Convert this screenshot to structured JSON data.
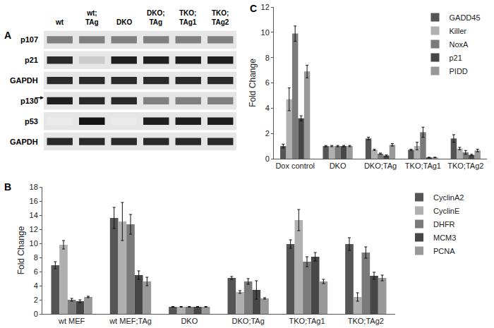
{
  "chart_data": [
    {
      "type": "bar",
      "panel_label": "B",
      "y_label": "Fold Change",
      "categories": [
        "wt MEF",
        "wt MEF;TAg",
        "DKO",
        "DKO;TAg",
        "TKO;TAg1",
        "TKO;TAg2"
      ],
      "ylim": [
        0,
        18
      ],
      "yticks": [
        0,
        2,
        4,
        6,
        8,
        10,
        12,
        14,
        16,
        18
      ],
      "grid": false,
      "legend": "right",
      "series": [
        {
          "name": "CyclinA2",
          "color": "#555555",
          "values": [
            6.9,
            13.6,
            1.0,
            5.1,
            9.9,
            9.9
          ],
          "errors": [
            0.5,
            1.5,
            0.05,
            0.2,
            0.6,
            0.9
          ]
        },
        {
          "name": "CyclinE",
          "color": "#b0b0b0",
          "values": [
            9.8,
            13.1,
            1.0,
            3.1,
            13.3,
            2.4
          ],
          "errors": [
            0.6,
            2.7,
            0.05,
            0.2,
            1.5,
            0.6
          ]
        },
        {
          "name": "DHFR",
          "color": "#7a7a7a",
          "values": [
            2.0,
            12.7,
            1.0,
            4.6,
            7.4,
            8.7
          ],
          "errors": [
            0.2,
            1.4,
            0.05,
            0.4,
            0.7,
            0.8
          ]
        },
        {
          "name": "MCM3",
          "color": "#474747",
          "values": [
            1.8,
            5.5,
            1.0,
            3.4,
            8.1,
            5.4
          ],
          "errors": [
            0.2,
            0.6,
            0.05,
            1.3,
            0.6,
            0.5
          ]
        },
        {
          "name": "PCNA",
          "color": "#999999",
          "values": [
            2.4,
            4.6,
            1.0,
            2.2,
            4.6,
            5.1
          ],
          "errors": [
            0.1,
            0.6,
            0.05,
            0.1,
            0.3,
            0.4
          ]
        }
      ]
    },
    {
      "type": "bar",
      "panel_label": "C",
      "y_label": "Fold Change",
      "categories": [
        "Dox control",
        "DKO",
        "DKO;TAg",
        "TKO;TAg1",
        "TKO;TAg2"
      ],
      "ylim": [
        0,
        12
      ],
      "yticks": [
        0,
        2,
        4,
        6,
        8,
        10,
        12
      ],
      "grid": false,
      "legend": "upper right",
      "series": [
        {
          "name": "GADD45",
          "color": "#555555",
          "values": [
            1.0,
            1.0,
            1.6,
            0.7,
            1.6
          ],
          "errors": [
            0.15,
            0.05,
            0.1,
            0.05,
            0.3
          ]
        },
        {
          "name": "Killer",
          "color": "#b0b0b0",
          "values": [
            4.7,
            1.0,
            0.7,
            1.0,
            0.8
          ],
          "errors": [
            0.9,
            0.05,
            0.05,
            0.3,
            0.1
          ]
        },
        {
          "name": "NoxA",
          "color": "#7a7a7a",
          "values": [
            9.9,
            1.0,
            0.4,
            2.1,
            0.5
          ],
          "errors": [
            0.6,
            0.05,
            0.05,
            0.4,
            0.15
          ]
        },
        {
          "name": "p21",
          "color": "#474747",
          "values": [
            3.2,
            1.0,
            0.25,
            0.1,
            0.3
          ],
          "errors": [
            0.2,
            0.05,
            0.05,
            0.02,
            0.05
          ]
        },
        {
          "name": "PIDD",
          "color": "#999999",
          "values": [
            6.9,
            1.0,
            1.1,
            0.1,
            0.65
          ],
          "errors": [
            0.5,
            0.05,
            0.1,
            0.02,
            0.1
          ]
        }
      ]
    }
  ],
  "blot": {
    "panel_label": "A",
    "lanes": [
      "wt",
      "wt;TAg",
      "DKO",
      "DKO;TAg",
      "TKO;TAg1",
      "TKO;TAg2"
    ],
    "rows": [
      {
        "label": "p107",
        "bands": [
          0.5,
          0.5,
          0.5,
          0.5,
          0.5,
          0.5
        ]
      },
      {
        "label": "p21",
        "bands": [
          0.9,
          0.15,
          0.95,
          0.95,
          0.95,
          0.95
        ]
      },
      {
        "label": "GAPDH",
        "bands": [
          0.9,
          0.9,
          0.9,
          0.9,
          0.9,
          0.9
        ]
      },
      {
        "label": "p130",
        "bands": [
          0.95,
          0.9,
          0.9,
          0.5,
          0.5,
          0.5
        ]
      },
      {
        "label": "p53",
        "bands": [
          0.0,
          1.0,
          0.0,
          0.95,
          0.95,
          0.95
        ]
      },
      {
        "label": "GAPDH",
        "bands": [
          0.9,
          0.9,
          0.9,
          0.9,
          0.9,
          0.9
        ]
      }
    ]
  }
}
